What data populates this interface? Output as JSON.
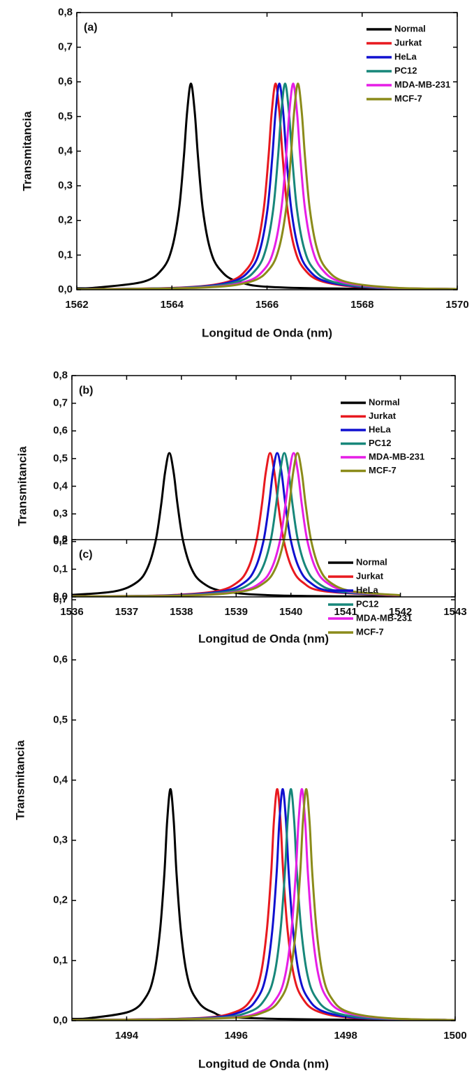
{
  "chart_data": [
    {
      "type": "line",
      "panel_label": "(a)",
      "x_label": "Longitud de Onda (nm)",
      "y_label": "Transmitancia",
      "xlim": [
        1562,
        1570
      ],
      "xticks": [
        1562,
        1564,
        1566,
        1568,
        1570
      ],
      "ylim": [
        0,
        0.8
      ],
      "yticks": [
        {
          "value": 0,
          "label": "0,0"
        },
        {
          "value": 0.1,
          "label": "0,1"
        },
        {
          "value": 0.2,
          "label": "0,2"
        },
        {
          "value": 0.3,
          "label": "0,3"
        },
        {
          "value": 0.4,
          "label": "0,4"
        },
        {
          "value": 0.5,
          "label": "0,5"
        },
        {
          "value": 0.6,
          "label": "0,6"
        },
        {
          "value": 0.7,
          "label": "0,7"
        },
        {
          "value": 0.8,
          "label": "0,8"
        }
      ],
      "legend": "upper right",
      "series": [
        {
          "name": "Normal",
          "color": "#000000",
          "x": [
            1562,
            1562.4,
            1563.4,
            1563.8,
            1564,
            1564.15,
            1564.25,
            1564.32,
            1564.4,
            1564.48,
            1564.55,
            1564.65,
            1564.8,
            1565,
            1565.4,
            1566.4,
            1570
          ],
          "values": [
            0.004,
            0.006,
            0.023,
            0.06,
            0.119,
            0.232,
            0.381,
            0.513,
            0.595,
            0.513,
            0.381,
            0.232,
            0.119,
            0.06,
            0.023,
            0.006,
            0.001
          ]
        },
        {
          "name": "Jurkat",
          "color": "#e8191f",
          "x": [
            1562,
            1564.18,
            1565.18,
            1565.58,
            1565.78,
            1565.93,
            1566.03,
            1566.1,
            1566.18,
            1566.26,
            1566.33,
            1566.43,
            1566.58,
            1566.78,
            1567.18,
            1568.18,
            1570
          ],
          "values": [
            0.001,
            0.006,
            0.023,
            0.06,
            0.119,
            0.232,
            0.381,
            0.513,
            0.595,
            0.513,
            0.381,
            0.232,
            0.119,
            0.06,
            0.023,
            0.006,
            0.002
          ]
        },
        {
          "name": "HeLa",
          "color": "#1010d0",
          "x": [
            1562,
            1564.26,
            1565.26,
            1565.66,
            1565.86,
            1566.01,
            1566.11,
            1566.18,
            1566.26,
            1566.34,
            1566.41,
            1566.51,
            1566.66,
            1566.86,
            1567.26,
            1568.26,
            1570
          ],
          "values": [
            0.001,
            0.006,
            0.023,
            0.06,
            0.119,
            0.232,
            0.381,
            0.513,
            0.595,
            0.513,
            0.381,
            0.232,
            0.119,
            0.06,
            0.023,
            0.006,
            0.002
          ]
        },
        {
          "name": "PC12",
          "color": "#17877a",
          "x": [
            1562,
            1564.38,
            1565.38,
            1565.78,
            1565.98,
            1566.13,
            1566.23,
            1566.3,
            1566.38,
            1566.46,
            1566.53,
            1566.63,
            1566.78,
            1566.98,
            1567.38,
            1568.38,
            1570
          ],
          "values": [
            0.001,
            0.006,
            0.023,
            0.06,
            0.119,
            0.232,
            0.381,
            0.513,
            0.595,
            0.513,
            0.381,
            0.232,
            0.119,
            0.06,
            0.023,
            0.006,
            0.002
          ]
        },
        {
          "name": "MDA-MB-231",
          "color": "#e61ee6",
          "x": [
            1562,
            1564.55,
            1565.55,
            1565.95,
            1566.15,
            1566.3,
            1566.4,
            1566.47,
            1566.55,
            1566.63,
            1566.7,
            1566.8,
            1566.95,
            1567.15,
            1567.55,
            1568.55,
            1570
          ],
          "values": [
            0.001,
            0.006,
            0.023,
            0.06,
            0.119,
            0.232,
            0.381,
            0.513,
            0.595,
            0.513,
            0.381,
            0.232,
            0.119,
            0.06,
            0.023,
            0.006,
            0.002
          ]
        },
        {
          "name": "MCF-7",
          "color": "#8b8b1a",
          "x": [
            1562,
            1564.65,
            1565.65,
            1566.05,
            1566.25,
            1566.4,
            1566.5,
            1566.57,
            1566.65,
            1566.73,
            1566.8,
            1566.9,
            1567.05,
            1567.25,
            1567.65,
            1568.65,
            1570
          ],
          "values": [
            0.001,
            0.006,
            0.023,
            0.06,
            0.119,
            0.232,
            0.381,
            0.513,
            0.595,
            0.513,
            0.381,
            0.232,
            0.119,
            0.06,
            0.023,
            0.006,
            0.002
          ]
        }
      ]
    },
    {
      "type": "line",
      "panel_label": "(b)",
      "x_label": "Longitud de Onda (nm)",
      "y_label": "Transmitancia",
      "xlim": [
        1536,
        1543
      ],
      "xticks": [
        1536,
        1537,
        1538,
        1539,
        1540,
        1541,
        1542,
        1543
      ],
      "ylim": [
        0,
        0.8
      ],
      "yticks": [
        {
          "value": 0,
          "label": "0,0"
        },
        {
          "value": 0.1,
          "label": "0,1"
        },
        {
          "value": 0.2,
          "label": "0,2"
        },
        {
          "value": 0.3,
          "label": "0,3"
        },
        {
          "value": 0.4,
          "label": "0,4"
        },
        {
          "value": 0.5,
          "label": "0,5"
        },
        {
          "value": 0.6,
          "label": "0,6"
        },
        {
          "value": 0.7,
          "label": "0,7"
        },
        {
          "value": 0.8,
          "label": "0,8"
        }
      ],
      "legend": "upper right",
      "series": [
        {
          "name": "Normal",
          "color": "#000000",
          "x": [
            1536,
            1536.78,
            1537.18,
            1537.38,
            1537.53,
            1537.63,
            1537.7,
            1537.78,
            1537.86,
            1537.93,
            1538.03,
            1538.18,
            1538.38,
            1538.78,
            1539.78,
            1542
          ],
          "values": [
            0.007,
            0.02,
            0.052,
            0.104,
            0.203,
            0.333,
            0.448,
            0.52,
            0.448,
            0.333,
            0.203,
            0.104,
            0.052,
            0.02,
            0.005,
            0.001
          ]
        },
        {
          "name": "Jurkat",
          "color": "#e8191f",
          "x": [
            1536,
            1537.62,
            1538.62,
            1539.02,
            1539.22,
            1539.37,
            1539.47,
            1539.54,
            1539.62,
            1539.7,
            1539.77,
            1539.87,
            1540.02,
            1540.22,
            1540.62,
            1542
          ],
          "values": [
            0.002,
            0.005,
            0.02,
            0.052,
            0.104,
            0.203,
            0.333,
            0.448,
            0.52,
            0.448,
            0.333,
            0.203,
            0.104,
            0.052,
            0.02,
            0.004
          ]
        },
        {
          "name": "HeLa",
          "color": "#1010d0",
          "x": [
            1536,
            1537.75,
            1538.75,
            1539.15,
            1539.35,
            1539.5,
            1539.6,
            1539.67,
            1539.75,
            1539.83,
            1539.9,
            1540,
            1540.15,
            1540.35,
            1540.75,
            1542
          ],
          "values": [
            0.002,
            0.005,
            0.02,
            0.052,
            0.104,
            0.203,
            0.333,
            0.448,
            0.52,
            0.448,
            0.333,
            0.203,
            0.104,
            0.052,
            0.02,
            0.005
          ]
        },
        {
          "name": "PC12",
          "color": "#17877a",
          "x": [
            1536,
            1537.88,
            1538.88,
            1539.28,
            1539.48,
            1539.63,
            1539.73,
            1539.8,
            1539.88,
            1539.96,
            1540.03,
            1540.13,
            1540.28,
            1540.48,
            1540.88,
            1542
          ],
          "values": [
            0.002,
            0.005,
            0.02,
            0.052,
            0.104,
            0.203,
            0.333,
            0.448,
            0.52,
            0.448,
            0.333,
            0.203,
            0.104,
            0.052,
            0.02,
            0.005
          ]
        },
        {
          "name": "MDA-MB-231",
          "color": "#e61ee6",
          "x": [
            1536,
            1538.05,
            1539.05,
            1539.45,
            1539.65,
            1539.8,
            1539.9,
            1539.97,
            1540.05,
            1540.13,
            1540.2,
            1540.3,
            1540.45,
            1540.65,
            1541.05,
            1542
          ],
          "values": [
            0.002,
            0.005,
            0.02,
            0.052,
            0.104,
            0.203,
            0.333,
            0.448,
            0.52,
            0.448,
            0.333,
            0.203,
            0.104,
            0.052,
            0.02,
            0.005
          ]
        },
        {
          "name": "MCF-7",
          "color": "#8b8b1a",
          "x": [
            1536,
            1538.12,
            1539.12,
            1539.52,
            1539.72,
            1539.87,
            1539.97,
            1540.04,
            1540.12,
            1540.2,
            1540.27,
            1540.37,
            1540.52,
            1540.72,
            1541.12,
            1542
          ],
          "values": [
            0.002,
            0.005,
            0.02,
            0.052,
            0.104,
            0.203,
            0.333,
            0.448,
            0.52,
            0.448,
            0.333,
            0.203,
            0.104,
            0.052,
            0.02,
            0.006
          ]
        }
      ]
    },
    {
      "type": "line",
      "panel_label": "(c)",
      "x_label": "Longitud de Onda (nm)",
      "y_label": "Transmitancia",
      "xlim": [
        1493,
        1500
      ],
      "xticks": [
        1494,
        1496,
        1498,
        1500
      ],
      "ylim": [
        0,
        0.8
      ],
      "yticks": [
        {
          "value": 0,
          "label": "0,0"
        },
        {
          "value": 0.1,
          "label": "0,1"
        },
        {
          "value": 0.2,
          "label": "0,2"
        },
        {
          "value": 0.3,
          "label": "0,3"
        },
        {
          "value": 0.4,
          "label": "0,4"
        },
        {
          "value": 0.5,
          "label": "0,5"
        },
        {
          "value": 0.6,
          "label": "0,6"
        },
        {
          "value": 0.7,
          "label": "0,7"
        },
        {
          "value": 0.8,
          "label": "0,8"
        }
      ],
      "legend": "upper right",
      "series": [
        {
          "name": "Normal",
          "color": "#000000",
          "x": [
            1493,
            1493.3,
            1494.05,
            1494.35,
            1494.5,
            1494.61,
            1494.69,
            1494.74,
            1494.8,
            1494.86,
            1494.91,
            1494.99,
            1495.1,
            1495.25,
            1495.55,
            1496.3,
            1500
          ],
          "values": [
            0.003,
            0.004,
            0.015,
            0.039,
            0.077,
            0.15,
            0.246,
            0.332,
            0.385,
            0.332,
            0.246,
            0.15,
            0.077,
            0.039,
            0.015,
            0.004,
            0
          ]
        },
        {
          "name": "Jurkat",
          "color": "#e8191f",
          "x": [
            1493,
            1495.25,
            1496,
            1496.3,
            1496.45,
            1496.56,
            1496.64,
            1496.69,
            1496.75,
            1496.81,
            1496.86,
            1496.94,
            1497.05,
            1497.2,
            1497.5,
            1498.25,
            1500
          ],
          "values": [
            0.001,
            0.004,
            0.015,
            0.039,
            0.077,
            0.15,
            0.246,
            0.332,
            0.385,
            0.332,
            0.246,
            0.15,
            0.077,
            0.039,
            0.015,
            0.004,
            0.001
          ]
        },
        {
          "name": "HeLa",
          "color": "#1010d0",
          "x": [
            1493,
            1495.35,
            1496.1,
            1496.4,
            1496.55,
            1496.66,
            1496.74,
            1496.79,
            1496.85,
            1496.91,
            1496.96,
            1497.04,
            1497.15,
            1497.3,
            1497.6,
            1498.35,
            1500
          ],
          "values": [
            0.001,
            0.004,
            0.015,
            0.039,
            0.077,
            0.15,
            0.246,
            0.332,
            0.385,
            0.332,
            0.246,
            0.15,
            0.077,
            0.039,
            0.015,
            0.004,
            0.001
          ]
        },
        {
          "name": "PC12",
          "color": "#17877a",
          "x": [
            1493,
            1495.5,
            1496.25,
            1496.55,
            1496.7,
            1496.81,
            1496.89,
            1496.94,
            1497,
            1497.06,
            1497.11,
            1497.19,
            1497.3,
            1497.45,
            1497.75,
            1498.5,
            1500
          ],
          "values": [
            0.001,
            0.004,
            0.015,
            0.039,
            0.077,
            0.15,
            0.246,
            0.332,
            0.385,
            0.332,
            0.246,
            0.15,
            0.077,
            0.039,
            0.015,
            0.004,
            0.001
          ]
        },
        {
          "name": "MDA-MB-231",
          "color": "#e61ee6",
          "x": [
            1493,
            1495.7,
            1496.45,
            1496.75,
            1496.9,
            1497.01,
            1497.09,
            1497.14,
            1497.2,
            1497.26,
            1497.31,
            1497.39,
            1497.5,
            1497.65,
            1497.95,
            1498.7,
            1500
          ],
          "values": [
            0.001,
            0.004,
            0.015,
            0.039,
            0.077,
            0.15,
            0.246,
            0.332,
            0.385,
            0.332,
            0.246,
            0.15,
            0.077,
            0.039,
            0.015,
            0.004,
            0.001
          ]
        },
        {
          "name": "MCF-7",
          "color": "#8b8b1a",
          "x": [
            1493,
            1495.78,
            1496.53,
            1496.83,
            1496.98,
            1497.09,
            1497.17,
            1497.22,
            1497.28,
            1497.34,
            1497.39,
            1497.47,
            1497.58,
            1497.73,
            1498.03,
            1498.78,
            1500
          ],
          "values": [
            0.001,
            0.004,
            0.015,
            0.039,
            0.077,
            0.15,
            0.246,
            0.332,
            0.385,
            0.332,
            0.246,
            0.15,
            0.077,
            0.039,
            0.015,
            0.004,
            0.001
          ]
        }
      ]
    }
  ]
}
